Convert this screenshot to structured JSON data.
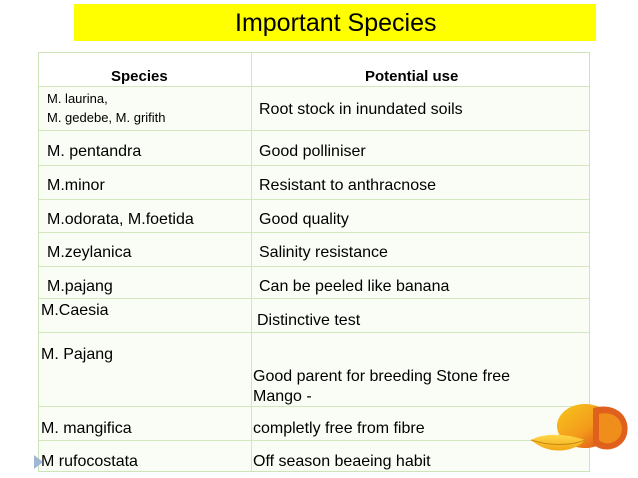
{
  "title": "Important Species",
  "table": {
    "headers": [
      "Species",
      "Potential use"
    ],
    "rows": [
      {
        "species_line1": "M. laurina,",
        "species_line2": "M. gedebe, M. grifith",
        "use": "Root stock in inundated soils"
      },
      {
        "species": "M. pentandra",
        "use": "Good polliniser"
      },
      {
        "species": "M.minor",
        "use": "Resistant to anthracnose"
      },
      {
        "species": "M.odorata, M.foetida",
        "use": "Good quality"
      },
      {
        "species": "M.zeylanica",
        "use": "Salinity resistance"
      },
      {
        "species": "M.pajang",
        "use": "Can be peeled like banana"
      },
      {
        "species": "M.Caesia",
        "use": "Distinctive test"
      },
      {
        "species": "M. Pajang",
        "use_line1": "Good parent for breeding Stone free",
        "use_line2": "Mango -"
      },
      {
        "species": "M. mangifica",
        "use": "completly free from fibre"
      },
      {
        "species": "M rufocostata",
        "use": "Off season beaeing habit"
      }
    ]
  },
  "colors": {
    "title_bg": "#ffff00",
    "table_bg": "#fafdf5",
    "border": "#d4e6bd"
  },
  "icons": [
    "mango-image",
    "bullet-arrow-icon"
  ]
}
